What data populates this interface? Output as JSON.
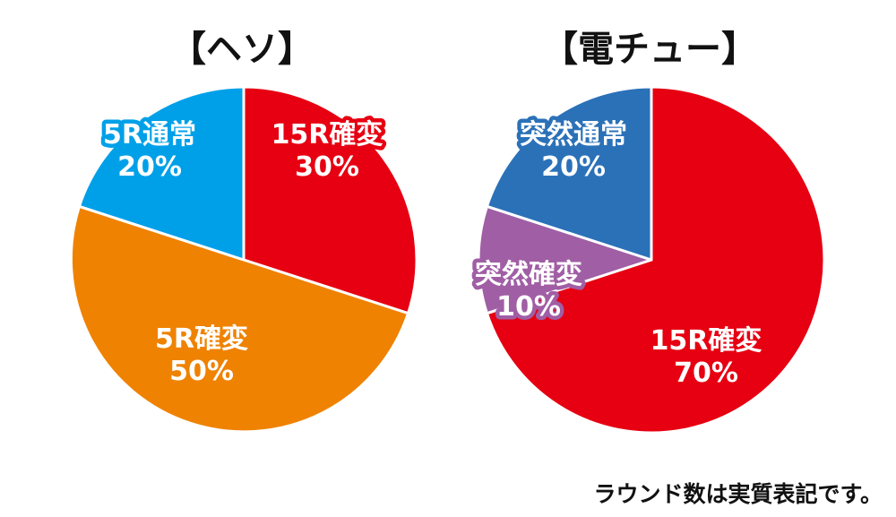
{
  "footnote": "ラウンド数は実質表記です。",
  "chart_data": [
    {
      "type": "pie",
      "title": "【ヘソ】",
      "start": "12 o'clock, clockwise",
      "slices": [
        {
          "line1": "15R確変",
          "line2": "30%",
          "value": 30,
          "color": "#e60012"
        },
        {
          "line1": "5R確変",
          "line2": "50%",
          "value": 50,
          "color": "#ef8200"
        },
        {
          "line1": "5R通常",
          "line2": "20%",
          "value": 20,
          "color": "#00a0e9"
        }
      ]
    },
    {
      "type": "pie",
      "title": "【電チュー】",
      "start": "12 o'clock, clockwise",
      "slices": [
        {
          "line1": "15R確変",
          "line2": "70%",
          "value": 70,
          "color": "#e60012"
        },
        {
          "line1": "突然確変",
          "line2": "10%",
          "value": 10,
          "color": "#a05ea5"
        },
        {
          "line1": "突然通常",
          "line2": "20%",
          "value": 20,
          "color": "#2b71b8"
        }
      ]
    }
  ]
}
